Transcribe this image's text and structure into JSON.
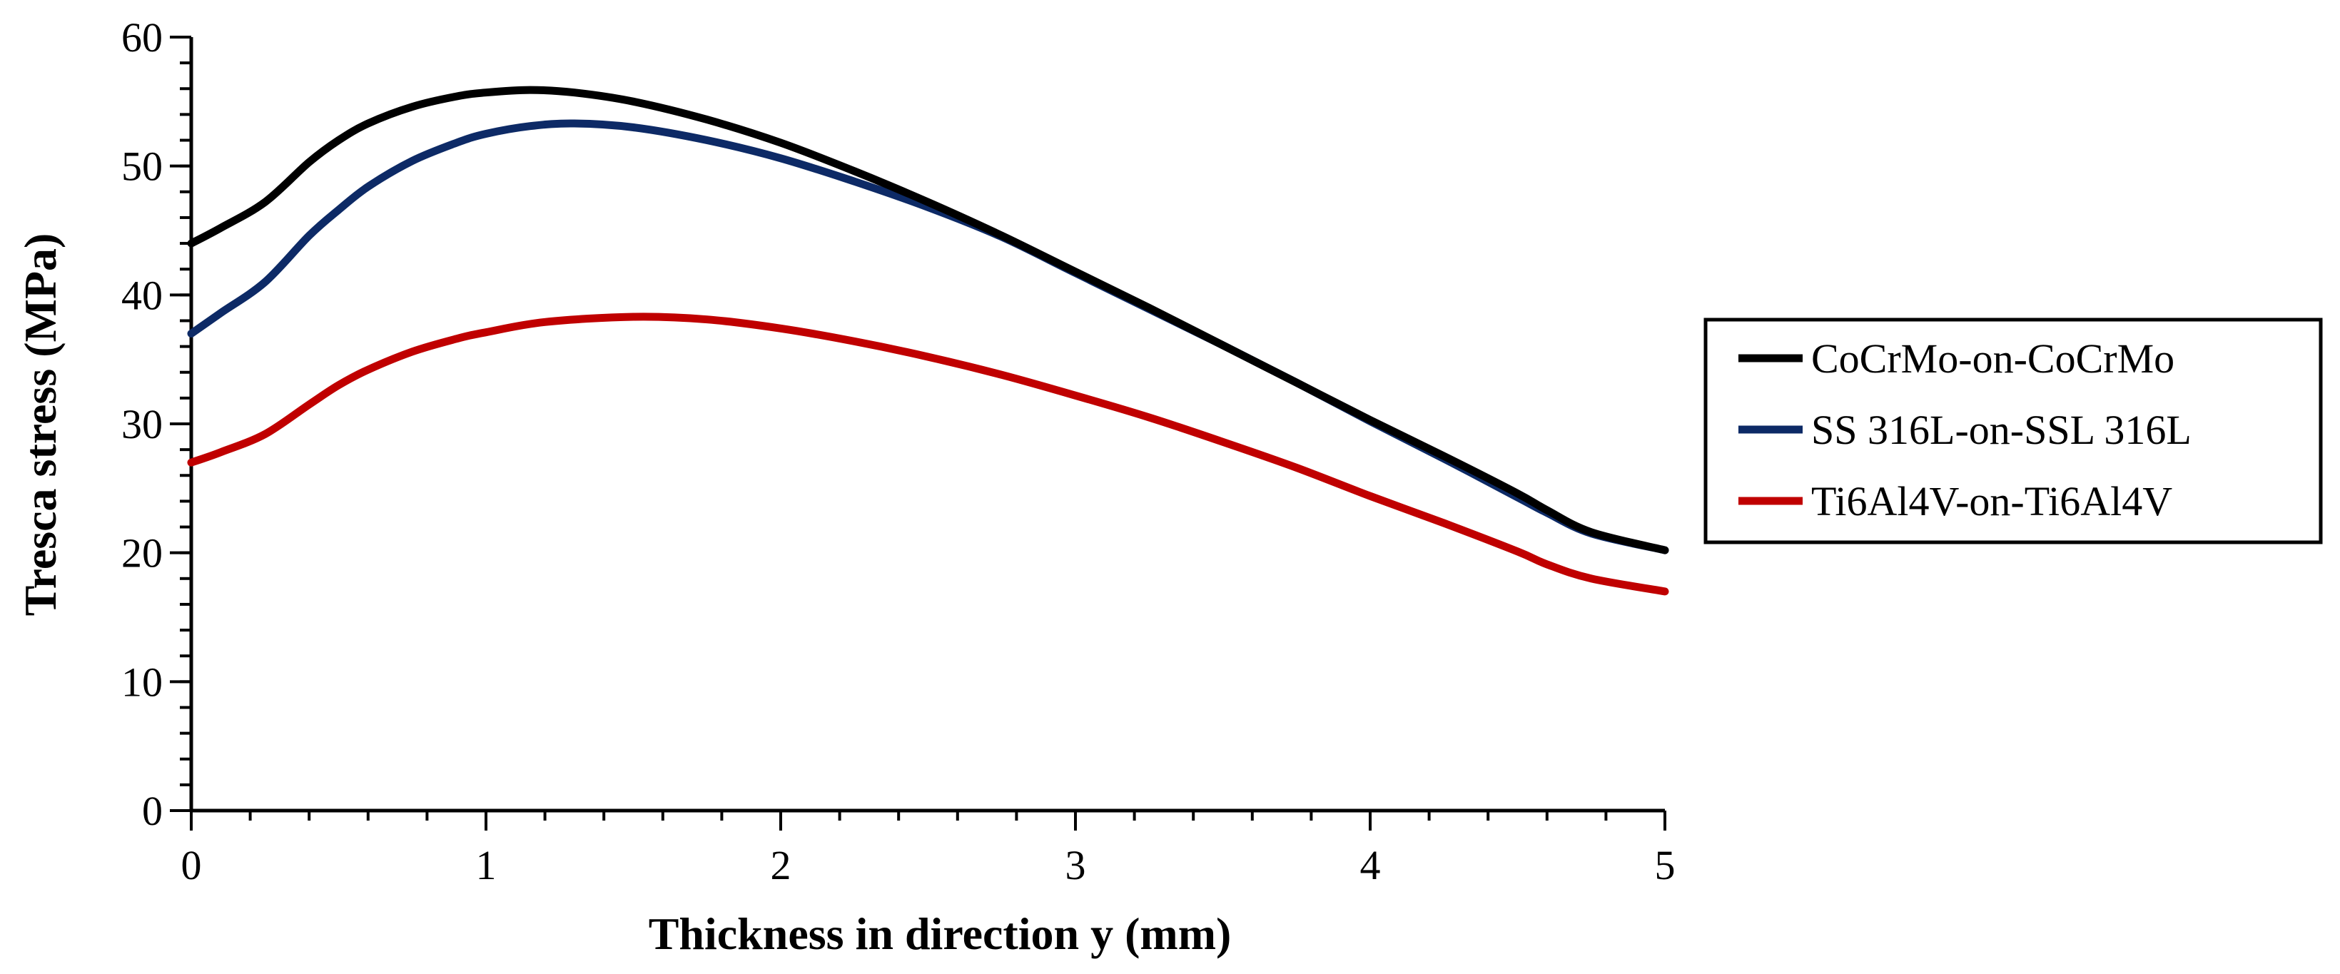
{
  "chart_data": {
    "type": "line",
    "title": "",
    "xlabel": "Thickness in direction y (mm)",
    "ylabel": "Tresca stress (MPa)",
    "xlim": [
      0,
      5
    ],
    "ylim": [
      0,
      60
    ],
    "x_ticks": [
      0,
      1,
      2,
      3,
      4,
      5
    ],
    "x_tick_labels": [
      "0",
      "1",
      "2",
      "3",
      "4",
      "5"
    ],
    "y_ticks": [
      0,
      10,
      20,
      30,
      40,
      50,
      60
    ],
    "y_tick_labels": [
      "0",
      "10",
      "20",
      "30",
      "40",
      "50",
      "60"
    ],
    "x_minor_step": 0.2,
    "y_minor_step": 2,
    "grid": false,
    "legend_position": "right",
    "series": [
      {
        "name": "CoCrMo-on-CoCrMo",
        "color": "#000000",
        "x": [
          0,
          0.1,
          0.25,
          0.4,
          0.5,
          0.6,
          0.75,
          0.9,
          1.0,
          1.15,
          1.3,
          1.5,
          1.75,
          2.0,
          2.25,
          2.5,
          2.75,
          3.0,
          3.25,
          3.5,
          3.75,
          4.0,
          4.25,
          4.5,
          4.6,
          4.75,
          5.0
        ],
        "y": [
          44,
          45.2,
          47.2,
          50.3,
          52,
          53.3,
          54.6,
          55.4,
          55.7,
          55.9,
          55.7,
          55,
          53.6,
          51.8,
          49.6,
          47.2,
          44.6,
          41.8,
          39,
          36.1,
          33.2,
          30.3,
          27.5,
          24.6,
          23.3,
          21.6,
          20.2
        ]
      },
      {
        "name": "SS 316L-on-SSL 316L",
        "color": "#0d2a66",
        "x": [
          0,
          0.1,
          0.25,
          0.4,
          0.5,
          0.6,
          0.75,
          0.9,
          1.0,
          1.15,
          1.3,
          1.5,
          1.75,
          2.0,
          2.25,
          2.5,
          2.75,
          3.0,
          3.25,
          3.5,
          3.75,
          4.0,
          4.25,
          4.5,
          4.6,
          4.75,
          5.0
        ],
        "y": [
          37,
          38.6,
          41,
          44.6,
          46.6,
          48.4,
          50.4,
          51.8,
          52.5,
          53.1,
          53.3,
          53,
          52,
          50.6,
          48.8,
          46.8,
          44.5,
          41.7,
          38.9,
          36.1,
          33.2,
          30.2,
          27.3,
          24.3,
          23.1,
          21.5,
          20.2
        ]
      },
      {
        "name": "Ti6Al4V-on-Ti6Al4V",
        "color": "#c00000",
        "x": [
          0,
          0.1,
          0.25,
          0.4,
          0.5,
          0.6,
          0.75,
          0.9,
          1.0,
          1.2,
          1.5,
          1.75,
          2.0,
          2.25,
          2.5,
          2.75,
          3.0,
          3.25,
          3.5,
          3.75,
          4.0,
          4.25,
          4.5,
          4.6,
          4.75,
          5.0
        ],
        "y": [
          27,
          27.8,
          29.2,
          31.5,
          33,
          34.2,
          35.6,
          36.6,
          37.1,
          37.9,
          38.3,
          38.1,
          37.4,
          36.4,
          35.2,
          33.8,
          32.2,
          30.5,
          28.6,
          26.6,
          24.4,
          22.3,
          20.1,
          19.1,
          18,
          17
        ]
      }
    ]
  }
}
